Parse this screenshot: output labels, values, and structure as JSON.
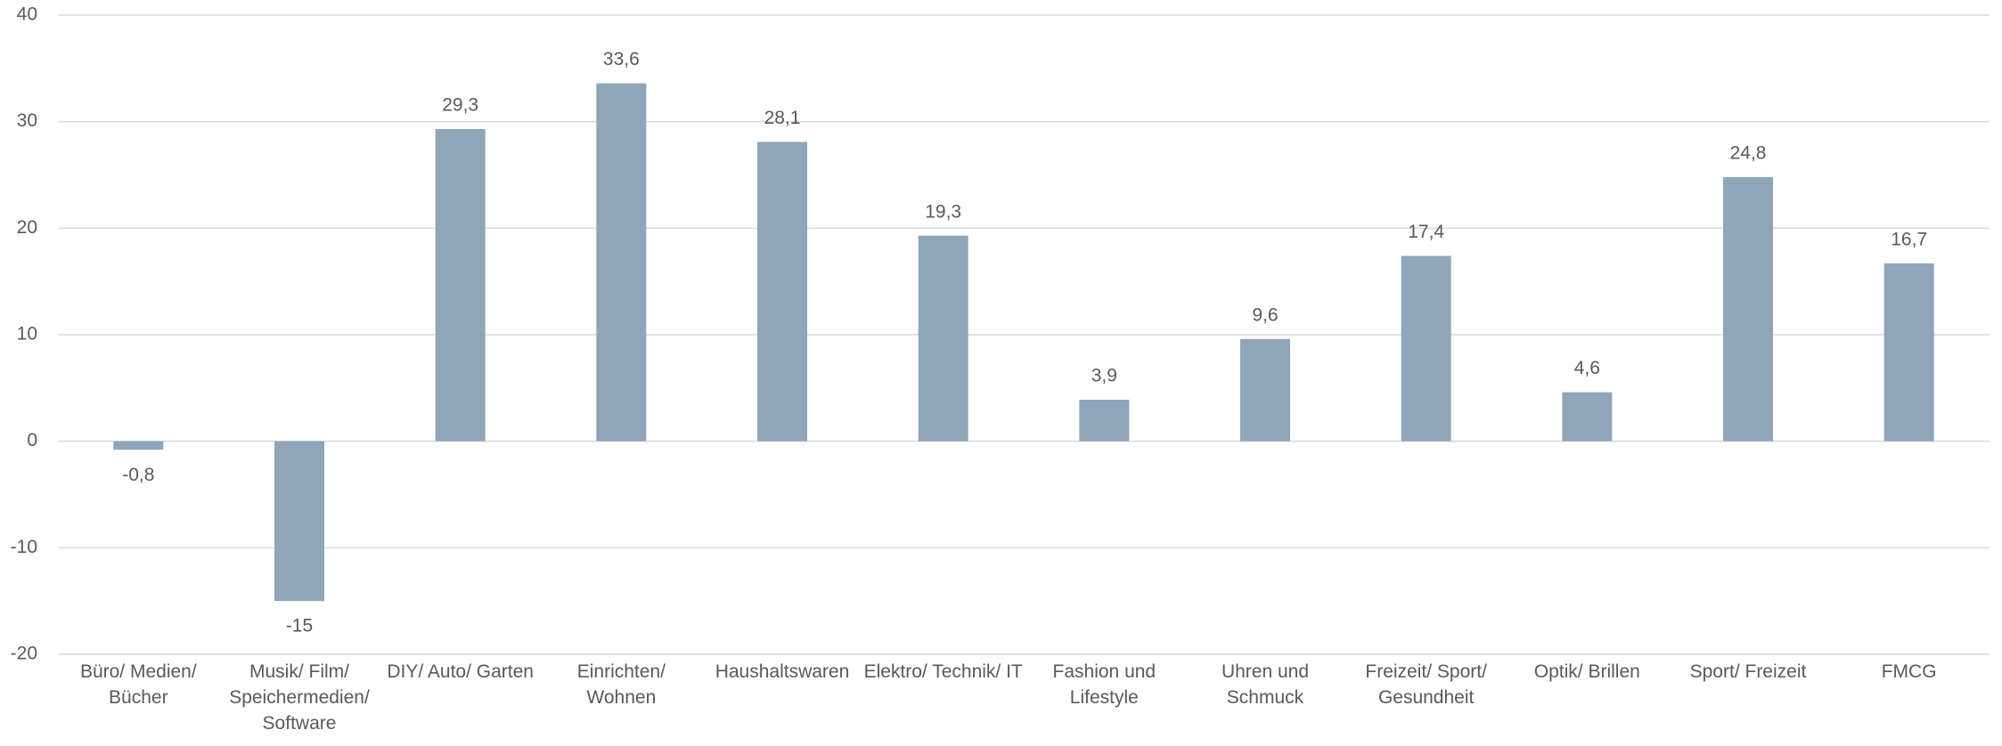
{
  "chart_data": {
    "type": "bar",
    "categories": [
      "Büro/ Medien/ Bücher",
      "Musik/ Film/ Speichermedien/ Software",
      "DIY/ Auto/ Garten",
      "Einrichten/ Wohnen",
      "Haushaltswaren",
      "Elektro/ Technik/ IT",
      "Fashion und Lifestyle",
      "Uhren und Schmuck",
      "Freizeit/ Sport/ Gesundheit",
      "Optik/ Brillen",
      "Sport/ Freizeit",
      "FMCG"
    ],
    "values": [
      -0.8,
      -15,
      29.3,
      33.6,
      28.1,
      19.3,
      3.9,
      9.6,
      17.4,
      4.6,
      24.8,
      16.7
    ],
    "value_labels": [
      "-0,8",
      "-15",
      "29,3",
      "33,6",
      "28,1",
      "19,3",
      "3,9",
      "9,6",
      "17,4",
      "4,6",
      "24,8",
      "16,7"
    ],
    "color": "#8fa5b9",
    "ylim": [
      -20,
      40
    ],
    "yticks": [
      -20,
      -10,
      0,
      10,
      20,
      30,
      40
    ],
    "grid": true
  }
}
